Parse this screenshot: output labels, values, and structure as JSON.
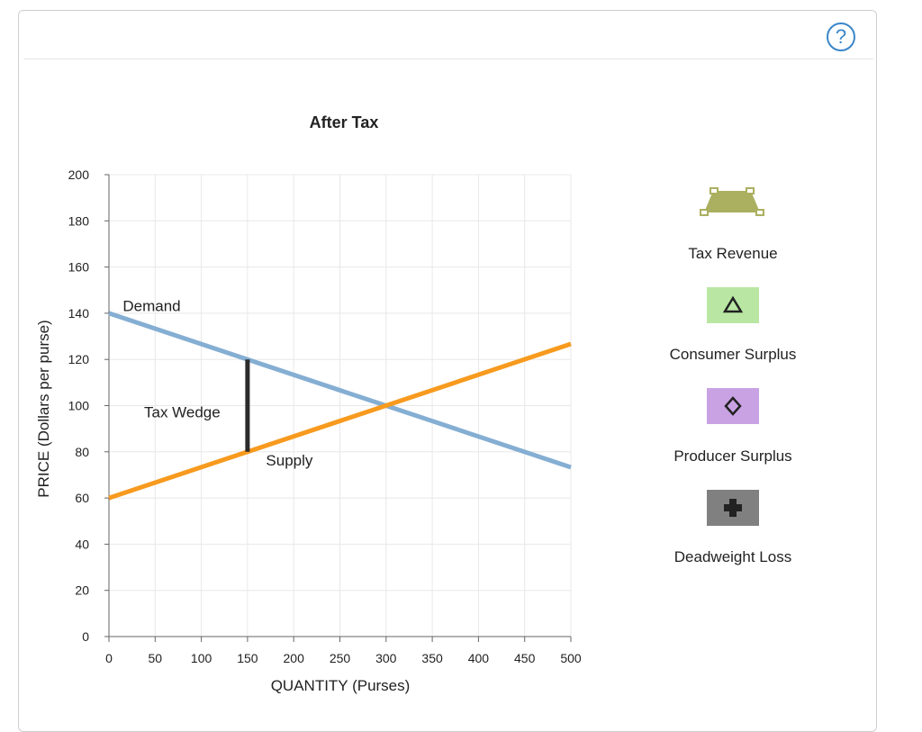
{
  "help": {
    "icon": "help-question-icon",
    "label": "?"
  },
  "chart_data": {
    "type": "line",
    "title": "After Tax",
    "xlabel": "QUANTITY (Purses)",
    "ylabel": "PRICE (Dollars per purse)",
    "xlim": [
      0,
      500
    ],
    "ylim": [
      0,
      200
    ],
    "xticks": [
      0,
      50,
      100,
      150,
      200,
      250,
      300,
      350,
      400,
      450,
      500
    ],
    "yticks": [
      0,
      20,
      40,
      60,
      80,
      100,
      120,
      140,
      160,
      180,
      200
    ],
    "grid": true,
    "series": [
      {
        "name": "Demand",
        "color": "#85aed3",
        "points": [
          [
            0,
            140
          ],
          [
            500,
            73.3
          ]
        ]
      },
      {
        "name": "Supply",
        "color": "#f79a1e",
        "points": [
          [
            0,
            60
          ],
          [
            500,
            126.7
          ]
        ]
      }
    ],
    "tax_wedge": {
      "label": "Tax Wedge",
      "x": 150,
      "y_low": 80,
      "y_high": 120,
      "color": "#2b2b2b"
    },
    "annotations": [
      {
        "text": "Demand",
        "anchor": [
          15,
          141
        ]
      },
      {
        "text": "Supply",
        "anchor": [
          170,
          74
        ]
      },
      {
        "text": "Tax Wedge",
        "anchor": [
          38,
          95
        ]
      }
    ]
  },
  "palette": [
    {
      "id": "tax-revenue",
      "label": "Tax Revenue",
      "icon": "tax-revenue-trapezoid-icon",
      "color": "#abb060"
    },
    {
      "id": "consumer-surplus",
      "label": "Consumer Surplus",
      "icon": "consumer-surplus-triangle-icon",
      "color": "#b9e7a3"
    },
    {
      "id": "producer-surplus",
      "label": "Producer Surplus",
      "icon": "producer-surplus-diamond-icon",
      "color": "#c9a2e3"
    },
    {
      "id": "deadweight-loss",
      "label": "Deadweight Loss",
      "icon": "deadweight-loss-cross-icon",
      "color": "#808080"
    }
  ]
}
